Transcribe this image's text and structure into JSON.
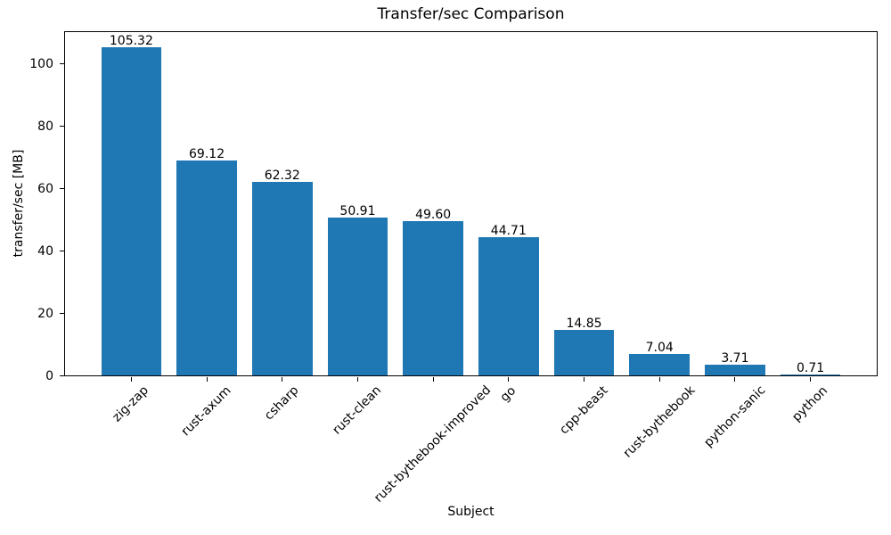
{
  "figure": {
    "background": "#ffffff"
  },
  "chart_data": {
    "type": "bar",
    "title": "Transfer/sec Comparison",
    "xlabel": "Subject",
    "ylabel": "transfer/sec [MB]",
    "categories": [
      "zig-zap",
      "rust-axum",
      "csharp",
      "rust-clean",
      "rust-bythebook-improved",
      "go",
      "cpp-beast",
      "rust-bythebook",
      "python-sanic",
      "python"
    ],
    "values": [
      105.32,
      69.12,
      62.32,
      50.91,
      49.6,
      44.71,
      14.85,
      7.04,
      3.71,
      0.71
    ],
    "value_labels": [
      "105.32",
      "69.12",
      "62.32",
      "50.91",
      "49.60",
      "44.71",
      "14.85",
      "7.04",
      "3.71",
      "0.71"
    ],
    "bar_color": "#1f77b4",
    "axis_color": "#000000",
    "text_color": "#000000",
    "ylim": [
      0,
      110.6
    ],
    "yticks": [
      0,
      20,
      40,
      60,
      80,
      100
    ],
    "x_tick_rotation_deg": 45,
    "grid": false
  }
}
